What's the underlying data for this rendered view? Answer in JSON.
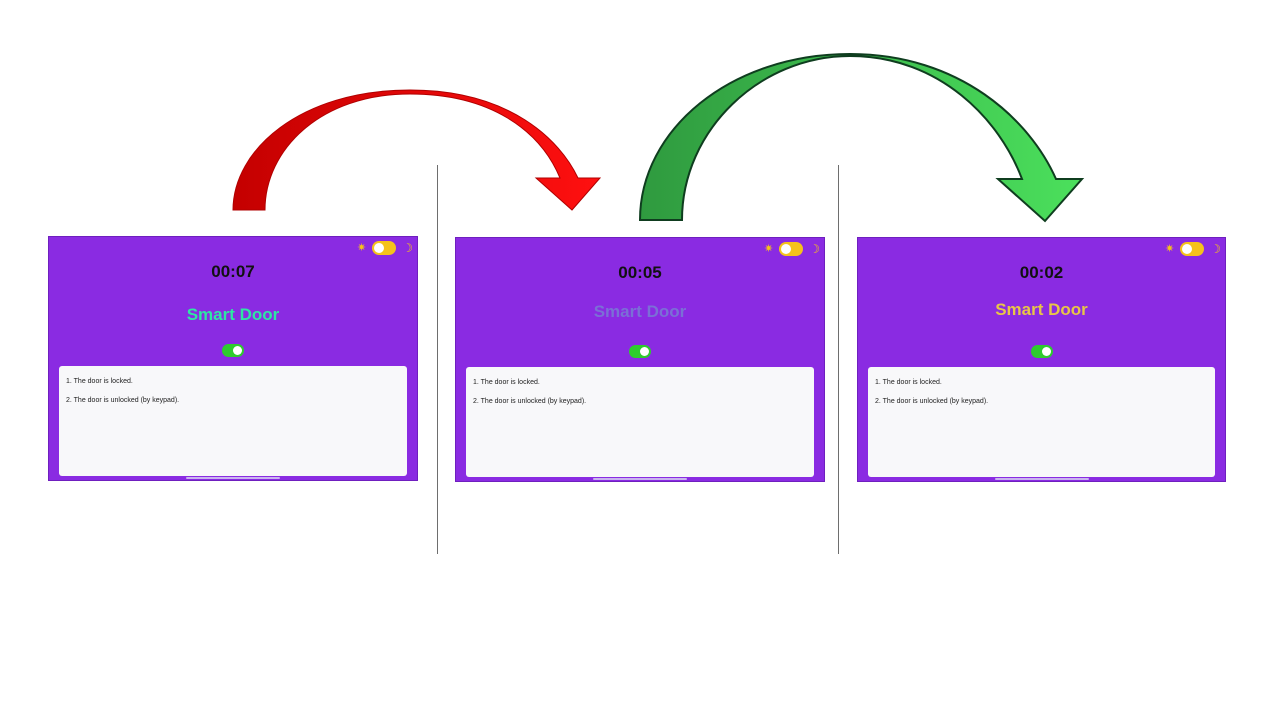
{
  "arrows": {
    "first": {
      "fill": "#e00000",
      "stroke": "#b00000"
    },
    "second": {
      "fill": "#3cb44b",
      "stroke": "#0f3d1f"
    }
  },
  "screens": [
    {
      "timer": "00:07",
      "title": "Smart Door",
      "title_color": "#2ee6a3",
      "log": [
        "1. The door is locked.",
        "2. The door is unlocked (by keypad)."
      ]
    },
    {
      "timer": "00:05",
      "title": "Smart Door",
      "title_color": "#7b6fd6",
      "log": [
        "1. The door is locked.",
        "2. The door is unlocked (by keypad)."
      ]
    },
    {
      "timer": "00:02",
      "title": "Smart Door",
      "title_color": "#e8c547",
      "log": [
        "1. The door is locked.",
        "2. The door is unlocked (by keypad)."
      ]
    }
  ],
  "colors": {
    "screen_bg": "#8a2be2",
    "theme_toggle": "#f5c21b",
    "lock_switch": "#2ecc2e",
    "log_bg": "#f8f8fa"
  },
  "icons": {
    "sun": "sun-icon",
    "moon": "moon-icon"
  }
}
